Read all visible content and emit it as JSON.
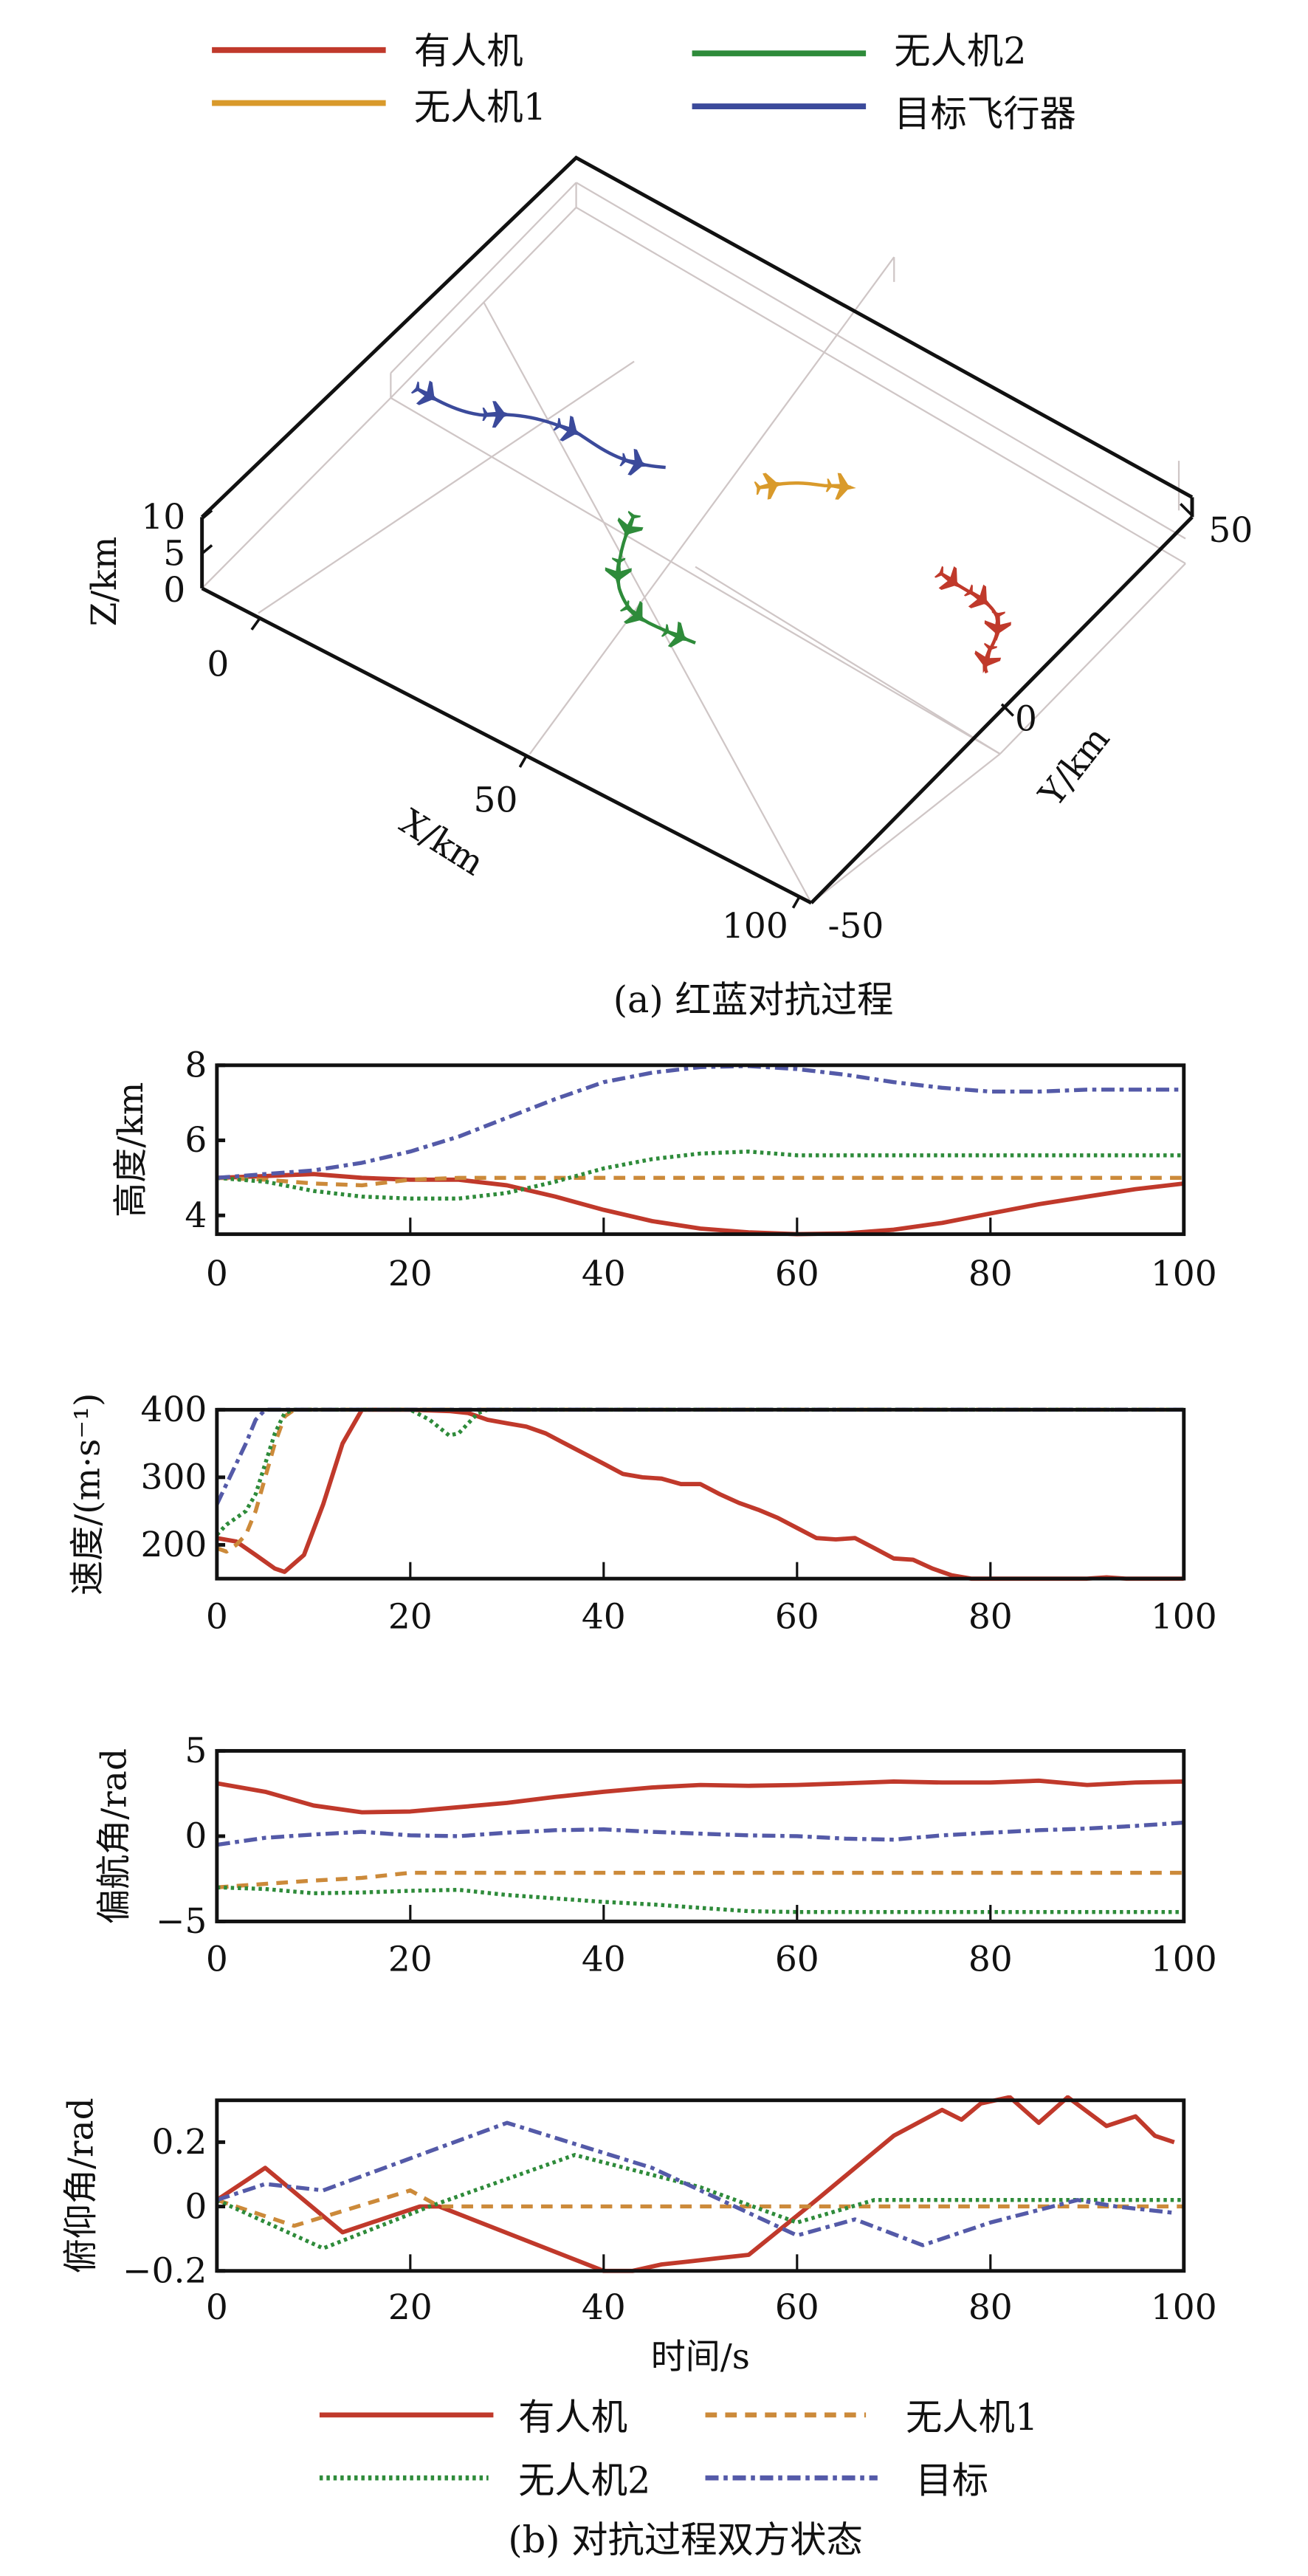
{
  "figure": {
    "caption_a": "(a) 红蓝对抗过程",
    "caption_b": "(b) 对抗过程双方状态"
  },
  "colors": {
    "manned": "#c0392b",
    "uav1": "#d99a2b",
    "uav2": "#2e8b3a",
    "target": "#3b4a9b",
    "uav1_b": "#cc8a3a",
    "target_b": "#545aa8"
  },
  "legend_top": [
    {
      "label": "有人机",
      "key": "manned"
    },
    {
      "label": "无人机2",
      "key": "uav2"
    },
    {
      "label": "无人机1",
      "key": "uav1"
    },
    {
      "label": "目标飞行器",
      "key": "target"
    }
  ],
  "legend_bottom": [
    {
      "label": "有人机",
      "key": "manned",
      "style": "solid"
    },
    {
      "label": "无人机1",
      "key": "uav1",
      "style": "dashed"
    },
    {
      "label": "无人机2",
      "key": "uav2",
      "style": "dotted"
    },
    {
      "label": "目标",
      "key": "target",
      "style": "dashdot"
    }
  ],
  "chart_data": [
    {
      "type": "line3d",
      "title": "(a) 红蓝对抗过程",
      "xlabel": "X/km",
      "ylabel": "Y/km",
      "zlabel": "Z/km",
      "xticks": [
        "0",
        "50",
        "100"
      ],
      "yticks": [
        "-50",
        "0",
        "50"
      ],
      "zticks": [
        "0",
        "5",
        "10"
      ],
      "xlim": [
        0,
        100
      ],
      "ylim": [
        -50,
        50
      ],
      "zlim": [
        0,
        10
      ],
      "series": [
        {
          "name": "目标飞行器",
          "key": "target",
          "aircraft_markers": 4
        },
        {
          "name": "无人机1",
          "key": "uav1",
          "aircraft_markers": 2
        },
        {
          "name": "无人机2",
          "key": "uav2",
          "aircraft_markers": 4
        },
        {
          "name": "有人机",
          "key": "manned",
          "aircraft_markers": 4
        }
      ]
    },
    {
      "type": "line",
      "ylabel": "高度/km",
      "xlim": [
        0,
        100
      ],
      "ylim": [
        3.5,
        8
      ],
      "xticks": [
        0,
        20,
        40,
        60,
        80,
        100
      ],
      "yticks": [
        4,
        6,
        8
      ],
      "x": [
        0,
        5,
        10,
        15,
        20,
        25,
        30,
        35,
        40,
        45,
        50,
        55,
        60,
        65,
        70,
        75,
        80,
        85,
        90,
        95,
        100
      ],
      "series": [
        {
          "name": "有人机",
          "key": "manned",
          "style": "solid",
          "values": [
            5.0,
            5.05,
            5.1,
            5.0,
            4.95,
            4.95,
            4.8,
            4.5,
            4.15,
            3.85,
            3.65,
            3.55,
            3.5,
            3.52,
            3.62,
            3.8,
            4.05,
            4.3,
            4.5,
            4.7,
            4.85
          ]
        },
        {
          "name": "无人机1",
          "key": "uav1",
          "style": "dashed",
          "values": [
            5.0,
            4.95,
            4.85,
            4.8,
            4.95,
            5.0,
            5.0,
            5.0,
            5.0,
            5.0,
            5.0,
            5.0,
            5.0,
            5.0,
            5.0,
            5.0,
            5.0,
            5.0,
            5.0,
            5.0,
            5.0
          ]
        },
        {
          "name": "无人机2",
          "key": "uav2",
          "style": "dotted",
          "values": [
            5.0,
            4.9,
            4.65,
            4.5,
            4.45,
            4.45,
            4.6,
            4.9,
            5.25,
            5.5,
            5.65,
            5.7,
            5.6,
            5.6,
            5.6,
            5.6,
            5.6,
            5.6,
            5.6,
            5.6,
            5.6
          ]
        },
        {
          "name": "目标",
          "key": "target",
          "style": "dashdot",
          "values": [
            5.0,
            5.1,
            5.2,
            5.4,
            5.7,
            6.1,
            6.6,
            7.1,
            7.55,
            7.8,
            7.95,
            7.98,
            7.9,
            7.75,
            7.55,
            7.4,
            7.3,
            7.3,
            7.35,
            7.35,
            7.35
          ]
        }
      ]
    },
    {
      "type": "line",
      "ylabel": "速度/(m·s⁻¹)",
      "xlim": [
        0,
        100
      ],
      "ylim": [
        150,
        400
      ],
      "xticks": [
        0,
        20,
        40,
        60,
        80,
        100
      ],
      "yticks": [
        200,
        300,
        400
      ],
      "series": [
        {
          "name": "有人机",
          "key": "manned",
          "style": "solid",
          "x": [
            0,
            2,
            4,
            6,
            7,
            9,
            11,
            13,
            15,
            20,
            24,
            26,
            28,
            30,
            32,
            34,
            36,
            38,
            40,
            42,
            44,
            46,
            48,
            50,
            52,
            54,
            56,
            58,
            60,
            62,
            64,
            66,
            68,
            70,
            72,
            74,
            76,
            78,
            80,
            84,
            90,
            92,
            94,
            100
          ],
          "values": [
            210,
            205,
            185,
            165,
            160,
            185,
            260,
            350,
            400,
            400,
            398,
            395,
            385,
            380,
            375,
            365,
            350,
            335,
            320,
            305,
            300,
            298,
            290,
            290,
            275,
            262,
            252,
            240,
            225,
            210,
            208,
            210,
            195,
            180,
            178,
            165,
            155,
            150,
            150,
            150,
            150,
            152,
            150,
            150
          ]
        },
        {
          "name": "无人机1",
          "key": "uav1",
          "style": "dashed",
          "x": [
            0,
            1,
            2,
            3,
            4,
            5,
            6,
            7,
            8,
            100
          ],
          "values": [
            195,
            190,
            200,
            215,
            250,
            300,
            350,
            390,
            400,
            400
          ]
        },
        {
          "name": "无人机2",
          "key": "uav2",
          "style": "dotted",
          "x": [
            0,
            1,
            2,
            3,
            4,
            5,
            6,
            7,
            8,
            20,
            22,
            24,
            25,
            26,
            27,
            28,
            100
          ],
          "values": [
            215,
            230,
            240,
            250,
            275,
            320,
            365,
            395,
            400,
            400,
            385,
            362,
            365,
            380,
            395,
            400,
            400
          ]
        },
        {
          "name": "目标",
          "key": "target",
          "style": "dashdot",
          "x": [
            0,
            1,
            2,
            3,
            4,
            5,
            100
          ],
          "values": [
            260,
            290,
            320,
            350,
            385,
            400,
            400
          ]
        }
      ]
    },
    {
      "type": "line",
      "ylabel": "偏航角/rad",
      "xlim": [
        0,
        100
      ],
      "ylim": [
        -5,
        5
      ],
      "xticks": [
        0,
        20,
        40,
        60,
        80,
        100
      ],
      "yticks": [
        -5,
        0,
        5
      ],
      "x": [
        0,
        5,
        10,
        15,
        20,
        25,
        30,
        35,
        40,
        45,
        50,
        55,
        60,
        65,
        70,
        75,
        80,
        85,
        90,
        95,
        100
      ],
      "series": [
        {
          "name": "有人机",
          "key": "manned",
          "style": "solid",
          "values": [
            3.1,
            2.6,
            1.8,
            1.4,
            1.45,
            1.7,
            1.95,
            2.3,
            2.6,
            2.85,
            3.0,
            2.95,
            3.0,
            3.1,
            3.2,
            3.15,
            3.15,
            3.25,
            3.0,
            3.15,
            3.2
          ]
        },
        {
          "name": "无人机1",
          "key": "uav1",
          "style": "dashed",
          "values": [
            -3.0,
            -2.8,
            -2.6,
            -2.45,
            -2.15,
            -2.15,
            -2.15,
            -2.15,
            -2.15,
            -2.15,
            -2.15,
            -2.15,
            -2.15,
            -2.15,
            -2.15,
            -2.15,
            -2.15,
            -2.15,
            -2.15,
            -2.15,
            -2.15
          ]
        },
        {
          "name": "无人机2",
          "key": "uav2",
          "style": "dotted",
          "values": [
            -3.0,
            -3.1,
            -3.35,
            -3.3,
            -3.2,
            -3.15,
            -3.45,
            -3.65,
            -3.85,
            -4.0,
            -4.2,
            -4.4,
            -4.45,
            -4.45,
            -4.45,
            -4.45,
            -4.45,
            -4.45,
            -4.45,
            -4.45,
            -4.45
          ]
        },
        {
          "name": "目标",
          "key": "target",
          "style": "dashdot",
          "values": [
            -0.5,
            -0.1,
            0.1,
            0.25,
            0.05,
            0.0,
            0.2,
            0.35,
            0.4,
            0.25,
            0.15,
            0.05,
            0.0,
            -0.15,
            -0.2,
            0.05,
            0.2,
            0.35,
            0.45,
            0.6,
            0.8
          ]
        }
      ]
    },
    {
      "type": "line",
      "ylabel": "俯仰角/rad",
      "xlabel": "时间/s",
      "xlim": [
        0,
        100
      ],
      "ylim": [
        -0.2,
        0.33
      ],
      "xticks": [
        0,
        20,
        40,
        60,
        80,
        100
      ],
      "yticks": [
        -0.2,
        0,
        0.2
      ],
      "series": [
        {
          "name": "有人机",
          "key": "manned",
          "style": "solid",
          "x": [
            0,
            5,
            13,
            21,
            23,
            40,
            43,
            46,
            49,
            52,
            55,
            62,
            70,
            75,
            77,
            79,
            82,
            85,
            88,
            92,
            95,
            97,
            99
          ],
          "values": [
            0.02,
            0.12,
            -0.08,
            0.0,
            0.0,
            -0.2,
            -0.2,
            -0.18,
            -0.17,
            -0.16,
            -0.15,
            0.02,
            0.22,
            0.3,
            0.27,
            0.32,
            0.34,
            0.26,
            0.34,
            0.25,
            0.28,
            0.22,
            0.2
          ]
        },
        {
          "name": "无人机1",
          "key": "uav1",
          "style": "dashed",
          "x": [
            0,
            8,
            20,
            23,
            100
          ],
          "values": [
            0.02,
            -0.06,
            0.05,
            0.0,
            0.0
          ]
        },
        {
          "name": "无人机2",
          "key": "uav2",
          "style": "dotted",
          "x": [
            0,
            11,
            22,
            37,
            50,
            60,
            68,
            100
          ],
          "values": [
            0.02,
            -0.13,
            0.0,
            0.16,
            0.06,
            -0.05,
            0.02,
            0.02
          ]
        },
        {
          "name": "目标",
          "key": "target",
          "style": "dashdot",
          "x": [
            0,
            5,
            11,
            30,
            45,
            60,
            66,
            73,
            80,
            89,
            93,
            99
          ],
          "values": [
            0.02,
            0.07,
            0.05,
            0.26,
            0.12,
            -0.09,
            -0.04,
            -0.12,
            -0.05,
            0.02,
            0.0,
            -0.02
          ]
        }
      ]
    }
  ]
}
